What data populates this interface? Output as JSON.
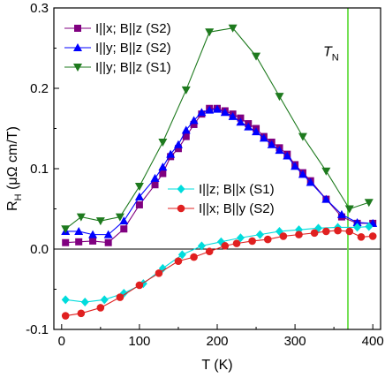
{
  "chart_data": {
    "type": "line",
    "xlabel": "T (K)",
    "ylabel_main": "R",
    "ylabel_sub": "H",
    "ylabel_unit": " (μΩ cm/T)",
    "xlim": [
      -10,
      410
    ],
    "ylim": [
      -0.1,
      0.3
    ],
    "xticks": [
      0,
      100,
      200,
      300,
      400
    ],
    "xtick_labels": [
      "0",
      "100",
      "200",
      "300",
      "400"
    ],
    "yticks": [
      -0.1,
      0.0,
      0.1,
      0.2,
      0.3
    ],
    "ytick_labels": [
      "-0.1",
      "0.0",
      "0.1",
      "0.2",
      "0.3"
    ],
    "zero_line": 0,
    "grid": false,
    "vline": {
      "x": 368,
      "label_main": "T",
      "label_sub": "N",
      "color": "#66dd44"
    },
    "legends": [
      {
        "position": "top-left",
        "series": [
          0,
          1,
          2
        ]
      },
      {
        "position": "center-right",
        "series": [
          3,
          4
        ]
      }
    ],
    "series": [
      {
        "name": "I||x; B||z (S2)",
        "color": "#800080",
        "marker": "square",
        "x": [
          5,
          22,
          40,
          60,
          80,
          100,
          120,
          130,
          140,
          150,
          160,
          170,
          180,
          190,
          200,
          210,
          220,
          230,
          240,
          250,
          260,
          270,
          280,
          290,
          300,
          310,
          320,
          340,
          360,
          380,
          400
        ],
        "y": [
          0.008,
          0.009,
          0.01,
          0.008,
          0.025,
          0.055,
          0.08,
          0.094,
          0.115,
          0.125,
          0.14,
          0.155,
          0.168,
          0.175,
          0.175,
          0.172,
          0.168,
          0.163,
          0.156,
          0.15,
          0.14,
          0.133,
          0.126,
          0.118,
          0.105,
          0.095,
          0.085,
          0.062,
          0.04,
          0.032,
          0.032
        ]
      },
      {
        "name": "I||y; B||z (S2)",
        "color": "#0000ff",
        "marker": "triangle-up",
        "x": [
          5,
          22,
          40,
          60,
          80,
          100,
          120,
          130,
          140,
          150,
          160,
          170,
          180,
          190,
          200,
          210,
          220,
          230,
          240,
          250,
          260,
          270,
          280,
          290,
          300,
          310,
          320,
          340,
          360,
          380,
          400
        ],
        "y": [
          0.022,
          0.022,
          0.018,
          0.018,
          0.035,
          0.065,
          0.088,
          0.102,
          0.118,
          0.13,
          0.148,
          0.16,
          0.17,
          0.173,
          0.174,
          0.17,
          0.165,
          0.158,
          0.152,
          0.146,
          0.138,
          0.13,
          0.123,
          0.116,
          0.103,
          0.093,
          0.083,
          0.062,
          0.043,
          0.033,
          0.032
        ]
      },
      {
        "name": "I||y; B||z (S1)",
        "color": "#1e7a1e",
        "marker": "triangle-down",
        "x": [
          5,
          25,
          50,
          75,
          100,
          130,
          160,
          190,
          220,
          250,
          280,
          310,
          340,
          370,
          395
        ],
        "y": [
          0.025,
          0.04,
          0.035,
          0.04,
          0.078,
          0.133,
          0.198,
          0.27,
          0.275,
          0.24,
          0.19,
          0.14,
          0.097,
          0.05,
          0.058
        ]
      },
      {
        "name": "I||z; B||x (S1)",
        "color": "#00dcdc",
        "marker": "diamond",
        "x": [
          5,
          30,
          55,
          80,
          105,
          130,
          155,
          180,
          205,
          230,
          255,
          280,
          305,
          330,
          355,
          380,
          395
        ],
        "y": [
          -0.063,
          -0.066,
          -0.063,
          -0.055,
          -0.043,
          -0.024,
          -0.007,
          0.004,
          0.009,
          0.014,
          0.018,
          0.022,
          0.024,
          0.026,
          0.027,
          0.027,
          0.028
        ]
      },
      {
        "name": "I||x; B||y (S2)",
        "color": "#e02020",
        "marker": "circle",
        "x": [
          5,
          25,
          50,
          75,
          100,
          125,
          150,
          170,
          190,
          210,
          225,
          245,
          265,
          285,
          305,
          325,
          340,
          355,
          370,
          385,
          400
        ],
        "y": [
          -0.083,
          -0.08,
          -0.073,
          -0.06,
          -0.045,
          -0.03,
          -0.015,
          -0.01,
          -0.003,
          0.004,
          0.007,
          0.01,
          0.012,
          0.016,
          0.018,
          0.02,
          0.022,
          0.023,
          0.022,
          0.015,
          0.016
        ]
      }
    ]
  }
}
